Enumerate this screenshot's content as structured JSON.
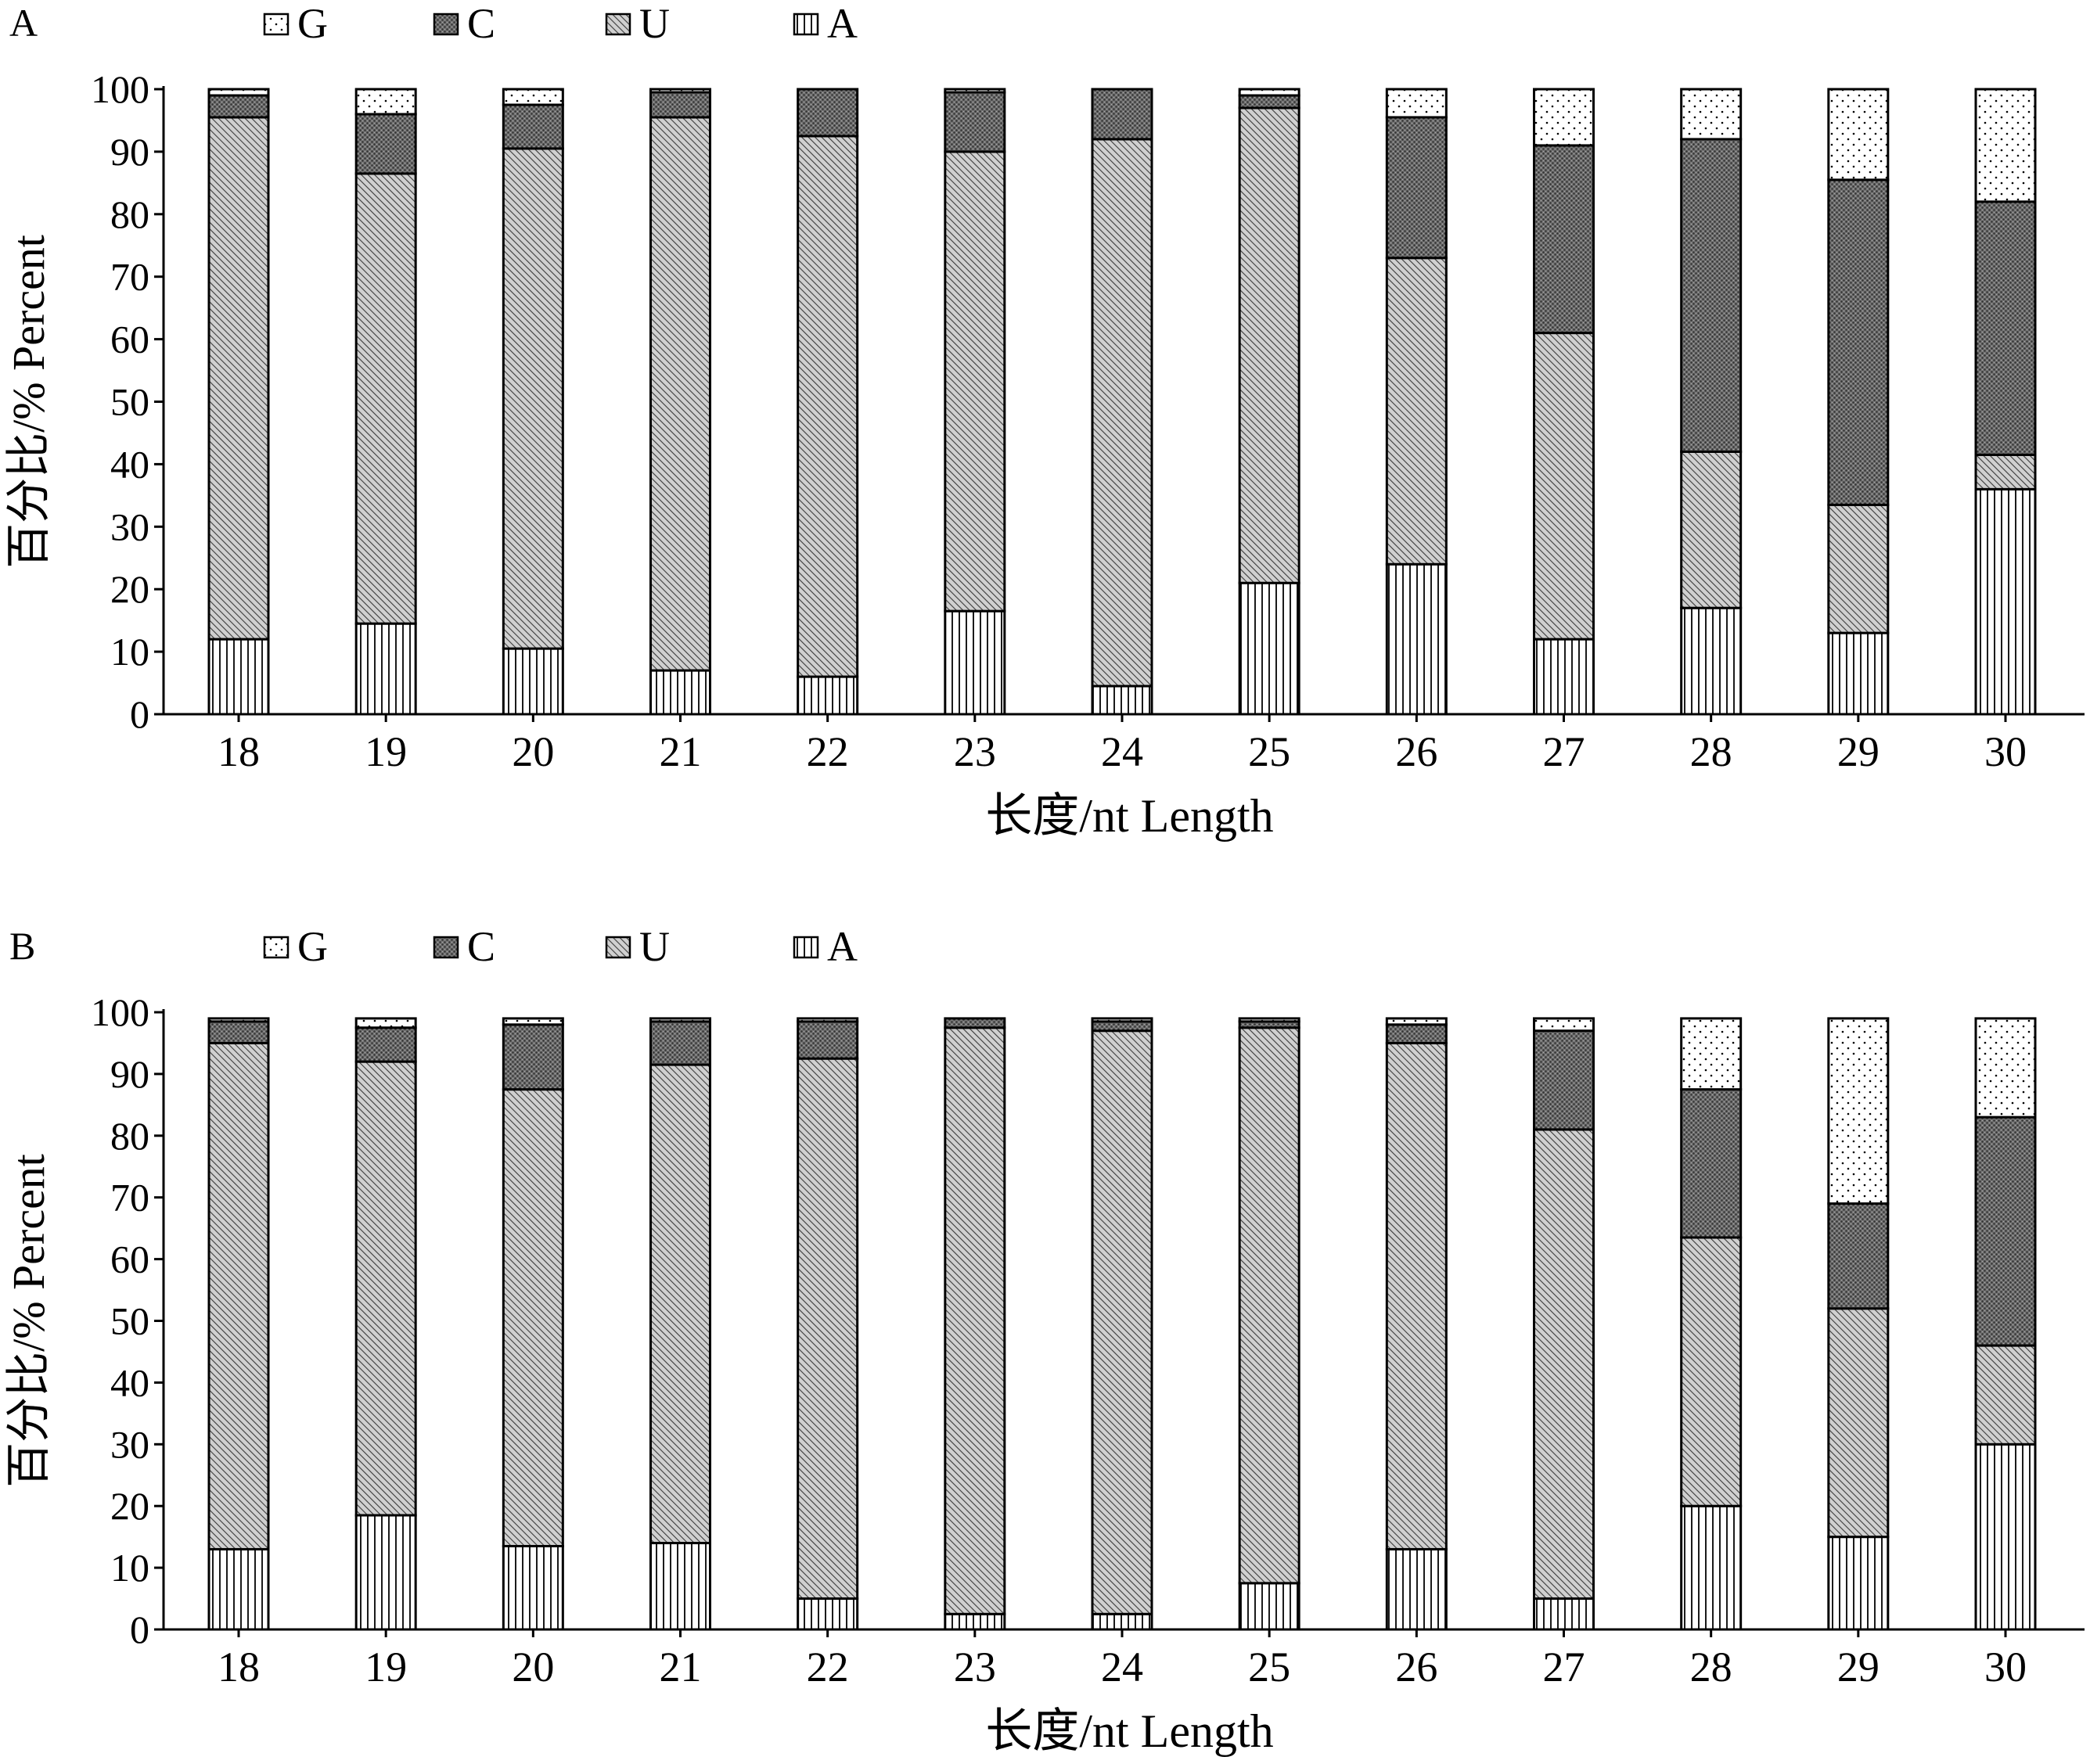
{
  "legend": [
    {
      "key": "G",
      "label": "G",
      "pattern": "dots"
    },
    {
      "key": "C",
      "label": "C",
      "pattern": "dense"
    },
    {
      "key": "U",
      "label": "U",
      "pattern": "hatch"
    },
    {
      "key": "A",
      "label": "A",
      "pattern": "vlines"
    }
  ],
  "chart_data": [
    {
      "panel_label": "A",
      "type": "bar",
      "stacked": true,
      "ylabel": "百分比/% Percent",
      "xlabel": "长度/nt Length",
      "ylim": [
        0,
        100
      ],
      "yticks": [
        "0",
        "10",
        "20",
        "30",
        "40",
        "50",
        "60",
        "70",
        "80",
        "90",
        "100"
      ],
      "categories": [
        "18",
        "19",
        "20",
        "21",
        "22",
        "23",
        "24",
        "25",
        "26",
        "27",
        "28",
        "29",
        "30"
      ],
      "series": [
        {
          "name": "A",
          "values": [
            12,
            14.5,
            10.5,
            7,
            6,
            16.5,
            4.5,
            21,
            24,
            12,
            17,
            13,
            36
          ]
        },
        {
          "name": "U",
          "values": [
            83.5,
            72,
            80,
            88.5,
            86.5,
            73.5,
            87.5,
            76,
            49,
            49,
            25,
            20.5,
            5.5
          ]
        },
        {
          "name": "C",
          "values": [
            3.5,
            9.5,
            7,
            4,
            7.5,
            9.5,
            8,
            2,
            22.5,
            30,
            50,
            52,
            40.5
          ]
        },
        {
          "name": "G",
          "values": [
            1,
            4,
            2.5,
            0.5,
            0,
            0.5,
            0,
            1,
            4.5,
            9,
            8,
            14.5,
            18
          ]
        }
      ]
    },
    {
      "panel_label": "B",
      "type": "bar",
      "stacked": true,
      "ylabel": "百分比/% Percent",
      "xlabel": "长度/nt Length",
      "ylim": [
        0,
        100
      ],
      "yticks": [
        "0",
        "10",
        "20",
        "30",
        "40",
        "50",
        "60",
        "70",
        "80",
        "90",
        "100"
      ],
      "categories": [
        "18",
        "19",
        "20",
        "21",
        "22",
        "23",
        "24",
        "25",
        "26",
        "27",
        "28",
        "29",
        "30"
      ],
      "series": [
        {
          "name": "A",
          "values": [
            13,
            18.5,
            13.5,
            14,
            5,
            2.5,
            2.5,
            7.5,
            13,
            5,
            20,
            15,
            30
          ]
        },
        {
          "name": "U",
          "values": [
            82,
            73.5,
            74,
            77.5,
            87.5,
            95,
            94.5,
            90,
            82,
            76,
            43.5,
            37,
            16
          ]
        },
        {
          "name": "C",
          "values": [
            3.5,
            5.5,
            10.5,
            7,
            6,
            1.5,
            1.5,
            1,
            3,
            16,
            24,
            17,
            37
          ]
        },
        {
          "name": "G",
          "values": [
            0.5,
            1.5,
            1,
            0.5,
            0.5,
            0,
            0.5,
            0.5,
            1,
            2,
            11.5,
            30,
            16
          ]
        }
      ]
    }
  ]
}
